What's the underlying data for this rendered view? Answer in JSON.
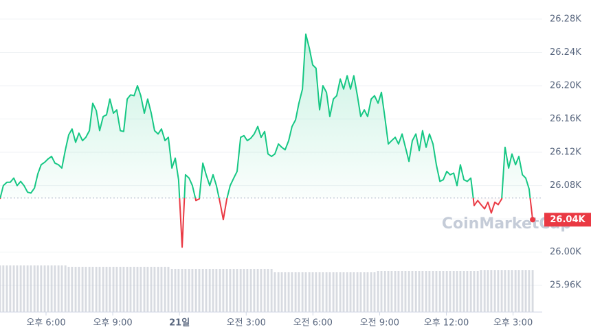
{
  "chart_data": {
    "type": "line",
    "x": [
      15.93,
      16.08,
      16.24,
      16.39,
      16.55,
      16.7,
      16.86,
      17.01,
      17.17,
      17.32,
      17.48,
      17.63,
      17.78,
      17.94,
      18.09,
      18.25,
      18.4,
      18.56,
      18.71,
      18.87,
      19.02,
      19.17,
      19.33,
      19.48,
      19.64,
      19.79,
      19.95,
      20.1,
      20.26,
      20.41,
      20.57,
      20.72,
      20.87,
      21.03,
      21.18,
      21.34,
      21.49,
      21.65,
      21.8,
      21.96,
      22.11,
      22.26,
      22.42,
      22.57,
      22.73,
      22.88,
      23.04,
      23.19,
      23.35,
      23.5,
      23.66,
      23.81,
      23.96,
      24.12,
      24.27,
      24.43,
      24.58,
      24.74,
      24.89,
      25.05,
      25.2,
      25.36,
      25.51,
      25.66,
      25.82,
      25.97,
      26.13,
      26.28,
      26.44,
      26.59,
      26.75,
      26.9,
      27.05,
      27.21,
      27.36,
      27.52,
      27.67,
      27.83,
      27.98,
      28.14,
      28.29,
      28.45,
      28.6,
      28.75,
      28.91,
      29.06,
      29.22,
      29.37,
      29.53,
      29.68,
      29.84,
      29.99,
      30.14,
      30.3,
      30.45,
      30.61,
      30.76,
      30.92,
      31.07,
      31.23,
      31.38,
      31.54,
      31.69,
      31.84,
      32.0,
      32.15,
      32.31,
      32.46,
      32.62,
      32.77,
      32.93,
      33.08,
      33.24,
      33.39,
      33.54,
      33.7,
      33.85,
      34.01,
      34.16,
      34.32,
      34.47,
      34.63,
      34.78,
      34.93,
      35.09,
      35.24,
      35.4,
      35.55,
      35.71,
      35.86,
      36.02,
      36.17,
      36.33,
      36.48,
      36.63,
      36.79,
      36.94,
      37.1,
      37.25,
      37.41,
      37.56,
      37.72,
      37.87,
      38.02,
      38.18,
      38.33,
      38.49,
      38.64,
      38.8,
      38.95,
      39.11,
      39.26,
      39.42,
      39.57,
      39.72,
      39.88
    ],
    "values": [
      26064,
      26080,
      26084,
      26084,
      26089,
      26080,
      26085,
      26080,
      26072,
      26071,
      26077,
      26094,
      26105,
      26108,
      26112,
      26115,
      26107,
      26105,
      26101,
      26123,
      26141,
      26148,
      26132,
      26143,
      26134,
      26138,
      26146,
      26179,
      26170,
      26146,
      26163,
      26165,
      26184,
      26167,
      26171,
      26146,
      26145,
      26184,
      26189,
      26188,
      26200,
      26188,
      26167,
      26184,
      26167,
      26146,
      26142,
      26148,
      26134,
      26138,
      26101,
      26113,
      26087,
      26006,
      26093,
      26089,
      26080,
      26062,
      26064,
      26107,
      26093,
      26080,
      26093,
      26080,
      26060,
      26039,
      26064,
      26080,
      26089,
      26097,
      26138,
      26140,
      26134,
      26137,
      26142,
      26151,
      26138,
      26145,
      26118,
      26115,
      26118,
      26130,
      26126,
      26123,
      26134,
      26151,
      26159,
      26179,
      26196,
      26262,
      26245,
      26225,
      26221,
      26171,
      26200,
      26192,
      26163,
      26184,
      26188,
      26208,
      26196,
      26212,
      26196,
      26212,
      26188,
      26163,
      26171,
      26163,
      26184,
      26188,
      26179,
      26192,
      26161,
      26130,
      26134,
      26138,
      26130,
      26142,
      26126,
      26109,
      26134,
      26142,
      26122,
      26146,
      26126,
      26142,
      26130,
      26105,
      26085,
      26087,
      26097,
      26093,
      26095,
      26080,
      26105,
      26087,
      26085,
      26089,
      26056,
      26062,
      26057,
      26052,
      26060,
      26047,
      26060,
      26057,
      26064,
      26126,
      26101,
      26118,
      26105,
      26115,
      26093,
      26089,
      26076,
      26039
    ],
    "volume": [
      68,
      68,
      68,
      68,
      68,
      68,
      68,
      68,
      68,
      68,
      68,
      68,
      68,
      68,
      68,
      68,
      68,
      68,
      68,
      68,
      66,
      66,
      66,
      66,
      66,
      66,
      66,
      66,
      66,
      66,
      66,
      66,
      66,
      66,
      66,
      66,
      66,
      66,
      66,
      66,
      66,
      66,
      66,
      66,
      66,
      66,
      66,
      66,
      66,
      66,
      63,
      63,
      63,
      63,
      63,
      63,
      63,
      63,
      63,
      63,
      63,
      63,
      63,
      63,
      63,
      63,
      63,
      63,
      63,
      63,
      63,
      63,
      63,
      63,
      63,
      63,
      63,
      63,
      63,
      63,
      58,
      58,
      58,
      58,
      58,
      58,
      58,
      58,
      58,
      58,
      58,
      58,
      58,
      58,
      58,
      58,
      58,
      58,
      58,
      58,
      58,
      58,
      58,
      58,
      58,
      58,
      58,
      58,
      58,
      58,
      60,
      60,
      60,
      60,
      60,
      60,
      60,
      60,
      60,
      60,
      60,
      60,
      60,
      60,
      60,
      60,
      60,
      60,
      60,
      60,
      60,
      60,
      60,
      60,
      60,
      60,
      60,
      60,
      60,
      60,
      61,
      61,
      61,
      61,
      61,
      61,
      61,
      61,
      61,
      61,
      61,
      61,
      61,
      61,
      61,
      61
    ],
    "baseline": 26065,
    "up_color": "#16c784",
    "down_color": "#ea3943",
    "volume_color": "#c8ccd4",
    "price_label": "26.04K",
    "watermark": "CoinMarketCap",
    "xlim": [
      15.93,
      40.31
    ],
    "xticks": [
      {
        "value": 18,
        "label": "오후 6:00"
      },
      {
        "value": 21,
        "label": "오후 9:00"
      },
      {
        "value": 24,
        "label": "21일"
      },
      {
        "value": 27,
        "label": "오전 3:00"
      },
      {
        "value": 30,
        "label": "오전 6:00"
      },
      {
        "value": 33,
        "label": "오전 9:00"
      },
      {
        "value": 36,
        "label": "오후 12:00"
      },
      {
        "value": 39,
        "label": "오후 3:00"
      }
    ],
    "ylim": [
      25928,
      26303
    ],
    "yticks": [
      {
        "value": 25960,
        "label": "25.96K"
      },
      {
        "value": 26000,
        "label": "26.00K"
      },
      {
        "value": 26040,
        "label": "26.04K"
      },
      {
        "value": 26080,
        "label": "26.08K"
      },
      {
        "value": 26120,
        "label": "26.12K"
      },
      {
        "value": 26160,
        "label": "26.16K"
      },
      {
        "value": 26200,
        "label": "26.20K"
      },
      {
        "value": 26240,
        "label": "26.24K"
      },
      {
        "value": 26280,
        "label": "26.28K"
      }
    ],
    "grid": true
  }
}
